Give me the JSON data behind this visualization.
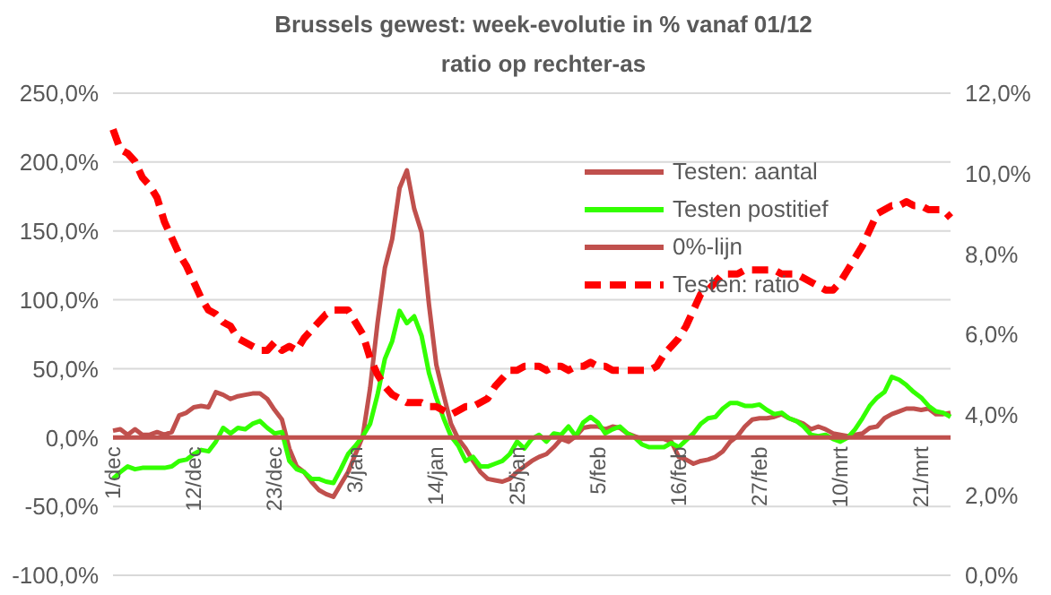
{
  "chart_data": {
    "type": "line",
    "title": "Brussels gewest: week-evolutie in % vanaf 01/12",
    "subtitle": "ratio op rechter-as",
    "categories": [
      "1/dec",
      null,
      null,
      null,
      null,
      null,
      null,
      null,
      null,
      null,
      null,
      "12/dec",
      null,
      null,
      null,
      null,
      null,
      null,
      null,
      null,
      null,
      null,
      "23/dec",
      null,
      null,
      null,
      null,
      null,
      null,
      null,
      null,
      null,
      null,
      "3/jan",
      null,
      null,
      null,
      null,
      null,
      null,
      null,
      null,
      null,
      null,
      "14/jan",
      null,
      null,
      null,
      null,
      null,
      null,
      null,
      null,
      null,
      null,
      "25/jan",
      null,
      null,
      null,
      null,
      null,
      null,
      null,
      null,
      null,
      null,
      "5/feb",
      null,
      null,
      null,
      null,
      null,
      null,
      null,
      null,
      null,
      null,
      "16/feb",
      null,
      null,
      null,
      null,
      null,
      null,
      null,
      null,
      null,
      null,
      "27/feb",
      null,
      null,
      null,
      null,
      null,
      null,
      null,
      null,
      null,
      null,
      "10/mrt",
      null,
      null,
      null,
      null,
      null,
      null,
      null,
      null,
      null,
      null,
      "21/mrt",
      null,
      null,
      null,
      null
    ],
    "series": [
      {
        "name": "Testen: aantal",
        "color": "#c0504d",
        "values": [
          5,
          6,
          2,
          6,
          2,
          2,
          4,
          2,
          4,
          16,
          18,
          22,
          23,
          22,
          33,
          31,
          28,
          30,
          31,
          32,
          32,
          28,
          20,
          13,
          -8,
          -21,
          -25,
          -32,
          -38,
          -41,
          -43,
          -34,
          -25,
          -12,
          1,
          36,
          83,
          123,
          144,
          181,
          194,
          166,
          149,
          97,
          53,
          31,
          10,
          -1,
          -8,
          -17,
          -25,
          -30,
          -31,
          -32,
          -30,
          -25,
          -21,
          -17,
          -14,
          -12,
          -7,
          -1,
          -3,
          1,
          7,
          8,
          8,
          6,
          8,
          7,
          3,
          1,
          -1,
          -1,
          -1,
          -1,
          -3,
          -14,
          -16,
          -19,
          -17,
          -16,
          -14,
          -10,
          -3,
          1,
          8,
          13,
          14,
          14,
          15,
          17,
          14,
          12,
          10,
          6,
          8,
          6,
          3,
          2,
          1,
          2,
          3,
          7,
          8,
          14,
          17,
          19,
          21,
          21,
          20,
          21,
          17,
          17,
          18
        ]
      },
      {
        "name": "Testen postitief",
        "color": "#33ff00",
        "values": [
          -30,
          -25,
          -21,
          -23,
          -22,
          -22,
          -22,
          -22,
          -21,
          -17,
          -16,
          -12,
          -9,
          -10,
          -3,
          7,
          3,
          7,
          6,
          10,
          12,
          7,
          3,
          4,
          -17,
          -23,
          -25,
          -30,
          -30,
          -32,
          -33,
          -23,
          -12,
          -6,
          1,
          10,
          31,
          57,
          70,
          92,
          83,
          88,
          74,
          47,
          29,
          14,
          1,
          -6,
          -17,
          -14,
          -21,
          -21,
          -19,
          -17,
          -12,
          -3,
          -8,
          -1,
          2,
          -3,
          3,
          2,
          8,
          1,
          11,
          15,
          11,
          3,
          6,
          8,
          3,
          0,
          -5,
          -7,
          -7,
          -7,
          -4,
          -7,
          -2,
          3,
          10,
          14,
          15,
          21,
          25,
          25,
          23,
          23,
          24,
          20,
          17,
          18,
          14,
          12,
          8,
          2,
          1,
          2,
          -1,
          -3,
          0,
          6,
          14,
          23,
          29,
          33,
          44,
          42,
          38,
          33,
          29,
          23,
          19,
          18,
          15
        ]
      },
      {
        "name": "0%-lijn",
        "color": "#c0504d",
        "values": [
          0,
          0,
          0,
          0,
          0,
          0,
          0,
          0,
          0,
          0,
          0,
          0,
          0,
          0,
          0,
          0,
          0,
          0,
          0,
          0,
          0,
          0,
          0,
          0,
          0,
          0,
          0,
          0,
          0,
          0,
          0,
          0,
          0,
          0,
          0,
          0,
          0,
          0,
          0,
          0,
          0,
          0,
          0,
          0,
          0,
          0,
          0,
          0,
          0,
          0,
          0,
          0,
          0,
          0,
          0,
          0,
          0,
          0,
          0,
          0,
          0,
          0,
          0,
          0,
          0,
          0,
          0,
          0,
          0,
          0,
          0,
          0,
          0,
          0,
          0,
          0,
          0,
          0,
          0,
          0,
          0,
          0,
          0,
          0,
          0,
          0,
          0,
          0,
          0,
          0,
          0,
          0,
          0,
          0,
          0,
          0,
          0,
          0,
          0,
          0,
          0,
          0,
          0,
          0,
          0,
          0,
          0,
          0,
          0,
          0,
          0,
          0,
          0,
          0,
          0
        ]
      },
      {
        "name": "Testen: ratio",
        "color": "#ff0000",
        "axis": "y2",
        "line_style": "dashed",
        "values": [
          11.1,
          10.6,
          10.5,
          10.3,
          9.9,
          9.7,
          9.4,
          8.8,
          8.4,
          8.0,
          7.7,
          7.3,
          6.9,
          6.6,
          6.5,
          6.3,
          6.2,
          5.9,
          5.8,
          5.7,
          5.6,
          5.6,
          5.8,
          5.6,
          5.7,
          5.6,
          5.9,
          6.1,
          6.3,
          6.5,
          6.6,
          6.6,
          6.6,
          6.3,
          6.0,
          5.4,
          5.0,
          4.7,
          4.5,
          4.4,
          4.3,
          4.3,
          4.3,
          4.2,
          4.2,
          4.1,
          4.0,
          4.1,
          4.2,
          4.2,
          4.3,
          4.4,
          4.7,
          4.9,
          5.1,
          5.1,
          5.2,
          5.2,
          5.2,
          5.1,
          5.2,
          5.2,
          5.1,
          5.2,
          5.2,
          5.3,
          5.2,
          5.2,
          5.1,
          5.1,
          5.1,
          5.1,
          5.1,
          5.1,
          5.2,
          5.5,
          5.7,
          5.9,
          6.2,
          6.6,
          7.0,
          7.1,
          7.3,
          7.5,
          7.5,
          7.5,
          7.6,
          7.6,
          7.6,
          7.6,
          7.6,
          7.5,
          7.5,
          7.5,
          7.4,
          7.3,
          7.2,
          7.1,
          7.1,
          7.3,
          7.6,
          7.9,
          8.2,
          8.6,
          9.0,
          9.1,
          9.2,
          9.2,
          9.3,
          9.2,
          9.2,
          9.1,
          9.1,
          9.1,
          8.9
        ]
      }
    ],
    "ylim": [
      -100,
      250
    ],
    "yticks": [
      {
        "value": -100,
        "label": "-100,0%"
      },
      {
        "value": -50,
        "label": "-50,0%"
      },
      {
        "value": 0,
        "label": "0,0%"
      },
      {
        "value": 50,
        "label": "50,0%"
      },
      {
        "value": 100,
        "label": "100,0%"
      },
      {
        "value": 150,
        "label": "150,0%"
      },
      {
        "value": 200,
        "label": "200,0%"
      },
      {
        "value": 250,
        "label": "250,0%"
      }
    ],
    "y2lim": [
      0,
      12
    ],
    "y2ticks": [
      {
        "value": 0,
        "label": "0,0%"
      },
      {
        "value": 2,
        "label": "2,0%"
      },
      {
        "value": 4,
        "label": "4,0%"
      },
      {
        "value": 6,
        "label": "6,0%"
      },
      {
        "value": 8,
        "label": "8,0%"
      },
      {
        "value": 10,
        "label": "10,0%"
      },
      {
        "value": 12,
        "label": "12,0%"
      }
    ],
    "grid": "y",
    "legend": "top right",
    "marker": "none"
  }
}
